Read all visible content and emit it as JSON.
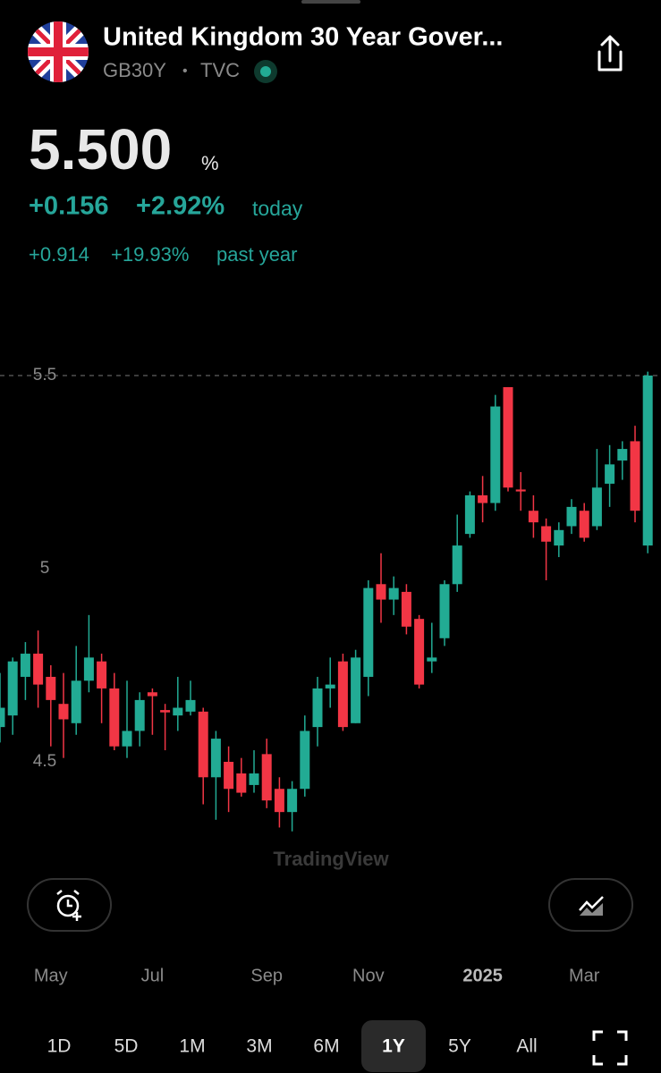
{
  "header": {
    "title": "United Kingdom 30 Year Gover...",
    "symbol": "GB30Y",
    "separator": "•",
    "exchange": "TVC"
  },
  "quote": {
    "price": "5.500",
    "unit": "%",
    "change_today": "+0.156",
    "change_today_pct": "+2.92%",
    "today_label": "today",
    "change_year": "+0.914",
    "change_year_pct": "+19.93%",
    "year_label": "past year"
  },
  "chart_data": {
    "type": "candlestick",
    "categories": [
      null,
      null,
      null,
      null,
      "May",
      null,
      null,
      null,
      null,
      null,
      null,
      null,
      "Jul",
      null,
      null,
      null,
      null,
      null,
      null,
      null,
      null,
      "Sep",
      null,
      null,
      null,
      null,
      null,
      null,
      null,
      "Nov",
      null,
      null,
      null,
      null,
      null,
      null,
      null,
      null,
      "2025",
      null,
      null,
      null,
      null,
      null,
      null,
      null,
      "Mar",
      null,
      null,
      null,
      null,
      null
    ],
    "open": [
      4.59,
      4.62,
      4.72,
      4.78,
      4.72,
      4.65,
      4.6,
      4.71,
      4.76,
      4.69,
      4.54,
      4.58,
      4.68,
      4.634,
      4.62,
      4.63,
      4.63,
      4.46,
      4.5,
      4.47,
      4.44,
      4.52,
      4.43,
      4.37,
      4.43,
      4.59,
      4.69,
      4.76,
      4.6,
      4.72,
      4.96,
      4.92,
      4.94,
      4.87,
      4.76,
      4.82,
      4.96,
      5.09,
      5.19,
      5.17,
      5.47,
      5.205,
      5.15,
      5.11,
      5.06,
      5.11,
      5.15,
      5.11,
      5.22,
      5.28,
      5.33,
      5.06
    ],
    "high": [
      4.73,
      4.77,
      4.81,
      4.84,
      4.75,
      4.73,
      4.8,
      4.88,
      4.78,
      4.73,
      4.71,
      4.68,
      4.69,
      4.65,
      4.72,
      4.71,
      4.64,
      4.58,
      4.54,
      4.51,
      4.53,
      4.56,
      4.46,
      4.45,
      4.62,
      4.72,
      4.77,
      4.78,
      4.79,
      4.97,
      5.04,
      4.98,
      4.96,
      4.88,
      4.86,
      4.97,
      5.14,
      5.2,
      5.24,
      5.45,
      5.47,
      5.25,
      5.19,
      5.13,
      5.12,
      5.18,
      5.17,
      5.31,
      5.32,
      5.33,
      5.37,
      5.51
    ],
    "low": [
      4.55,
      4.57,
      4.66,
      4.64,
      4.54,
      4.51,
      4.57,
      4.68,
      4.6,
      4.53,
      4.51,
      4.54,
      4.57,
      4.53,
      4.58,
      4.62,
      4.39,
      4.35,
      4.37,
      4.41,
      4.42,
      4.38,
      4.33,
      4.32,
      4.41,
      4.54,
      4.64,
      4.58,
      4.6,
      4.67,
      4.86,
      4.88,
      4.83,
      4.69,
      4.73,
      4.8,
      4.94,
      5.08,
      5.12,
      5.15,
      5.2,
      5.15,
      5.08,
      4.97,
      5.03,
      5.09,
      5.07,
      5.1,
      5.16,
      5.23,
      5.12,
      5.04
    ],
    "close": [
      4.64,
      4.76,
      4.78,
      4.7,
      4.66,
      4.61,
      4.71,
      4.77,
      4.69,
      4.54,
      4.58,
      4.66,
      4.67,
      4.628,
      4.64,
      4.66,
      4.46,
      4.56,
      4.43,
      4.42,
      4.47,
      4.4,
      4.37,
      4.43,
      4.58,
      4.69,
      4.7,
      4.59,
      4.77,
      4.95,
      4.92,
      4.95,
      4.85,
      4.7,
      4.77,
      4.96,
      5.06,
      5.19,
      5.17,
      5.42,
      5.21,
      5.2,
      5.12,
      5.07,
      5.1,
      5.16,
      5.08,
      5.21,
      5.27,
      5.31,
      5.15,
      5.5
    ],
    "up_color": "#22ab94",
    "down_color": "#f23645",
    "ylim": [
      4.25,
      5.6
    ],
    "yticks": [
      4.5,
      5,
      5.5
    ],
    "watermark": "TradingView"
  },
  "controls": {
    "ranges": [
      "1D",
      "5D",
      "1M",
      "3M",
      "6M",
      "1Y",
      "5Y",
      "All"
    ],
    "selected": "1Y"
  }
}
